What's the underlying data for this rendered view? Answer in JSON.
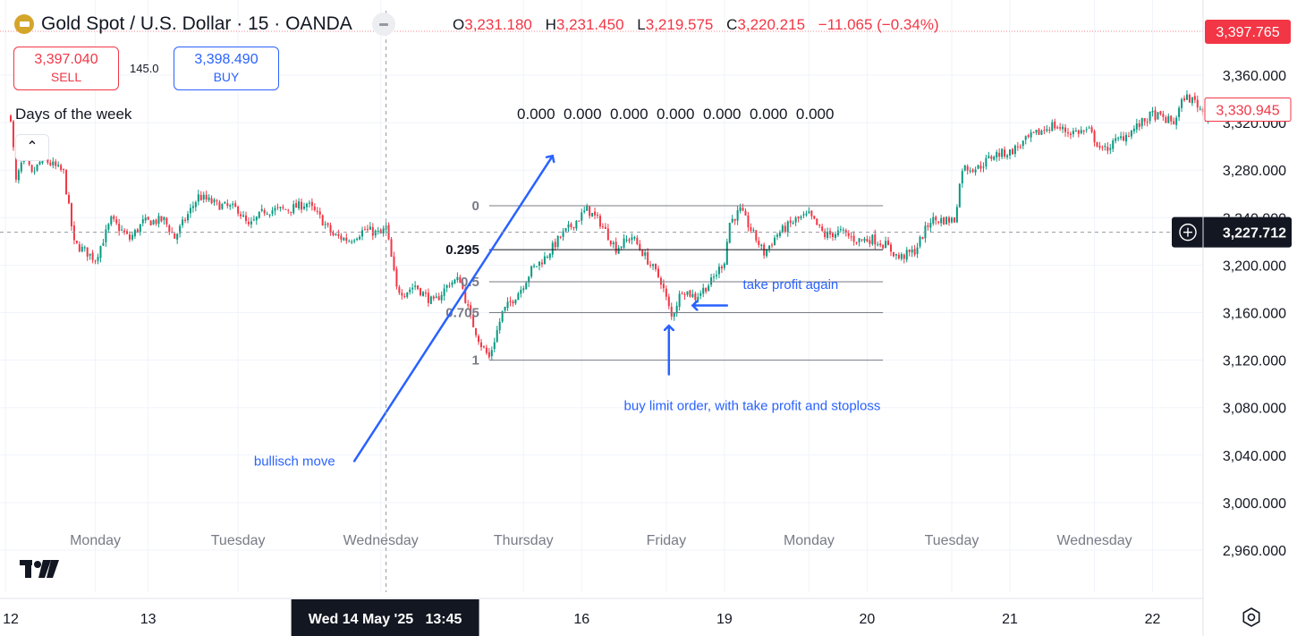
{
  "symbol": {
    "title": "Gold Spot / U.S. Dollar · 15 · OANDA",
    "logo_icon": "gold-bar-icon"
  },
  "ohlc": {
    "o_label": "O",
    "o": "3,231.180",
    "h_label": "H",
    "h": "3,231.450",
    "l_label": "L",
    "l": "3,219.575",
    "c_label": "C",
    "c": "3,220.215",
    "change": "−11.065 (−0.34%)"
  },
  "trade": {
    "sell_price": "3,397.040",
    "sell_label": "SELL",
    "spread": "145.0",
    "buy_price": "3,398.490",
    "buy_label": "BUY"
  },
  "indicator": {
    "title": "Days of the week",
    "values": "0.000  0.000  0.000  0.000  0.000  0.000  0.000"
  },
  "colors": {
    "up": "#089981",
    "down": "#f23645",
    "annotation": "#2962ff",
    "fib_line": "#787b86",
    "grid": "#f0f3fa",
    "crosshair": "#9598a1"
  },
  "chart_data": {
    "type": "candlestick",
    "price_axis": {
      "ticks": [
        "3,360.000",
        "3,320.000",
        "3,280.000",
        "3,240.000",
        "3,200.000",
        "3,160.000",
        "3,120.000",
        "3,080.000",
        "3,040.000",
        "3,000.000",
        "2,960.000"
      ],
      "tick_values": [
        3360,
        3320,
        3280,
        3240,
        3200,
        3160,
        3120,
        3080,
        3040,
        3000,
        2960
      ],
      "range": [
        2925,
        3405
      ]
    },
    "time_axis": {
      "date_ticks": [
        {
          "label": "12",
          "bar": -2
        },
        {
          "label": "13",
          "bar": 52
        },
        {
          "label": "16",
          "bar": 216
        },
        {
          "label": "19",
          "bar": 270
        },
        {
          "label": "20",
          "bar": 324
        },
        {
          "label": "21",
          "bar": 378
        },
        {
          "label": "22",
          "bar": 432
        }
      ],
      "day_labels": [
        {
          "label": "Monday",
          "bar": 32
        },
        {
          "label": "Tuesday",
          "bar": 86
        },
        {
          "label": "Wednesday",
          "bar": 140
        },
        {
          "label": "Thursday",
          "bar": 194
        },
        {
          "label": "Friday",
          "bar": 248
        },
        {
          "label": "Monday",
          "bar": 302
        },
        {
          "label": "Tuesday",
          "bar": 356
        },
        {
          "label": "Wednesday",
          "bar": 410
        }
      ],
      "total_bars": 458
    },
    "price_anchors": [
      {
        "bar": 0,
        "price": 3325
      },
      {
        "bar": 2,
        "price": 3270
      },
      {
        "bar": 5,
        "price": 3292
      },
      {
        "bar": 8,
        "price": 3276
      },
      {
        "bar": 12,
        "price": 3290
      },
      {
        "bar": 20,
        "price": 3278
      },
      {
        "bar": 24,
        "price": 3218
      },
      {
        "bar": 28,
        "price": 3212
      },
      {
        "bar": 32,
        "price": 3205
      },
      {
        "bar": 38,
        "price": 3238
      },
      {
        "bar": 45,
        "price": 3222
      },
      {
        "bar": 50,
        "price": 3236
      },
      {
        "bar": 58,
        "price": 3238
      },
      {
        "bar": 62,
        "price": 3223
      },
      {
        "bar": 71,
        "price": 3258
      },
      {
        "bar": 78,
        "price": 3251
      },
      {
        "bar": 86,
        "price": 3247
      },
      {
        "bar": 90,
        "price": 3232
      },
      {
        "bar": 96,
        "price": 3246
      },
      {
        "bar": 105,
        "price": 3247
      },
      {
        "bar": 112,
        "price": 3252
      },
      {
        "bar": 117,
        "price": 3240
      },
      {
        "bar": 122,
        "price": 3225
      },
      {
        "bar": 128,
        "price": 3221
      },
      {
        "bar": 134,
        "price": 3230
      },
      {
        "bar": 140,
        "price": 3226
      },
      {
        "bar": 142,
        "price": 3232
      },
      {
        "bar": 146,
        "price": 3180
      },
      {
        "bar": 149,
        "price": 3177
      },
      {
        "bar": 153,
        "price": 3183
      },
      {
        "bar": 156,
        "price": 3176
      },
      {
        "bar": 160,
        "price": 3168
      },
      {
        "bar": 166,
        "price": 3185
      },
      {
        "bar": 170,
        "price": 3188
      },
      {
        "bar": 174,
        "price": 3155
      },
      {
        "bar": 178,
        "price": 3133
      },
      {
        "bar": 181,
        "price": 3122
      },
      {
        "bar": 186,
        "price": 3160
      },
      {
        "bar": 193,
        "price": 3180
      },
      {
        "bar": 197,
        "price": 3196
      },
      {
        "bar": 202,
        "price": 3206
      },
      {
        "bar": 208,
        "price": 3224
      },
      {
        "bar": 213,
        "price": 3235
      },
      {
        "bar": 218,
        "price": 3247
      },
      {
        "bar": 223,
        "price": 3236
      },
      {
        "bar": 229,
        "price": 3214
      },
      {
        "bar": 235,
        "price": 3224
      },
      {
        "bar": 241,
        "price": 3204
      },
      {
        "bar": 246,
        "price": 3187
      },
      {
        "bar": 250,
        "price": 3156
      },
      {
        "bar": 254,
        "price": 3180
      },
      {
        "bar": 259,
        "price": 3173
      },
      {
        "bar": 265,
        "price": 3186
      },
      {
        "bar": 270,
        "price": 3204
      },
      {
        "bar": 272,
        "price": 3236
      },
      {
        "bar": 276,
        "price": 3246
      },
      {
        "bar": 279,
        "price": 3234
      },
      {
        "bar": 285,
        "price": 3210
      },
      {
        "bar": 290,
        "price": 3226
      },
      {
        "bar": 297,
        "price": 3238
      },
      {
        "bar": 302,
        "price": 3242
      },
      {
        "bar": 308,
        "price": 3225
      },
      {
        "bar": 314,
        "price": 3228
      },
      {
        "bar": 320,
        "price": 3221
      },
      {
        "bar": 326,
        "price": 3222
      },
      {
        "bar": 331,
        "price": 3217
      },
      {
        "bar": 336,
        "price": 3206
      },
      {
        "bar": 342,
        "price": 3212
      },
      {
        "bar": 348,
        "price": 3238
      },
      {
        "bar": 357,
        "price": 3238
      },
      {
        "bar": 360,
        "price": 3282
      },
      {
        "bar": 366,
        "price": 3282
      },
      {
        "bar": 372,
        "price": 3293
      },
      {
        "bar": 378,
        "price": 3295
      },
      {
        "bar": 386,
        "price": 3308
      },
      {
        "bar": 394,
        "price": 3318
      },
      {
        "bar": 400,
        "price": 3312
      },
      {
        "bar": 408,
        "price": 3313
      },
      {
        "bar": 413,
        "price": 3296
      },
      {
        "bar": 418,
        "price": 3304
      },
      {
        "bar": 424,
        "price": 3313
      },
      {
        "bar": 432,
        "price": 3327
      },
      {
        "bar": 440,
        "price": 3320
      },
      {
        "bar": 444,
        "price": 3342
      },
      {
        "bar": 448,
        "price": 3338
      },
      {
        "bar": 452,
        "price": 3326
      },
      {
        "bar": 455,
        "price": 3330
      }
    ],
    "fibonacci": {
      "start_bar": 181,
      "end_bar": 330,
      "levels": [
        {
          "label": "0",
          "price": 3250
        },
        {
          "label": "0.295",
          "price": 3213
        },
        {
          "label": "0.5",
          "price": 3186
        },
        {
          "label": "0.705",
          "price": 3160
        },
        {
          "label": "1",
          "price": 3120
        }
      ]
    },
    "price_labels": {
      "ask": "3,397.765",
      "current": "3,330.945",
      "current_value": 3331,
      "crosshair": "3,227.712",
      "crosshair_value": 3227.7
    },
    "crosshair": {
      "bar": 142,
      "time_label": "Wed 14 May '25   13:45"
    },
    "annotations": [
      {
        "text": "bullisch move"
      },
      {
        "text": "take profit again"
      },
      {
        "text": "buy limit order, with take profit and stoploss"
      }
    ]
  }
}
